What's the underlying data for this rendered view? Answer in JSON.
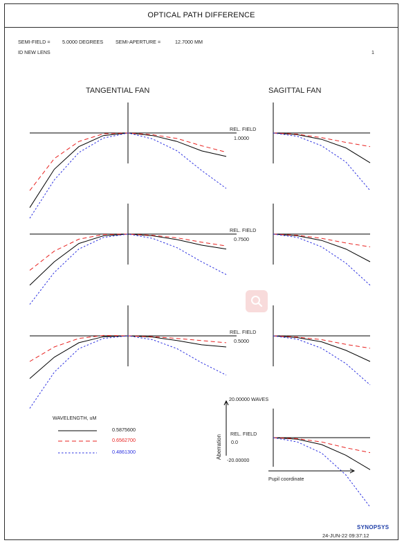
{
  "page": {
    "title": "OPTICAL PATH DIFFERENCE",
    "semi_field_label": "SEMI-FIELD =",
    "semi_field_value": "5.0000 DEGREES",
    "semi_aperture_label": "SEMI-APERTURE =",
    "semi_aperture_value": "12.7000 MM",
    "lens_id": "ID NEW LENS",
    "page_number": "1",
    "brand": "SYNOPSYS",
    "timestamp": "24-JUN-22  09:37:12"
  },
  "chart_data": {
    "type": "line",
    "title": "OPTICAL PATH DIFFERENCE",
    "panel_headers": [
      "TANGENTIAL FAN",
      "SAGITTAL FAN"
    ],
    "field_label": "REL. FIELD",
    "scale": {
      "top_label": "20.00000 WAVES",
      "zero_label": "0.0",
      "bottom_label": "-20.00000",
      "ylim": [
        -20,
        20
      ],
      "xlim": [
        -1,
        1
      ]
    },
    "ylabel": "Aberration",
    "xlabel": "Pupil coordinate",
    "legend": {
      "title": "WAVELENGTH, uM",
      "entries": [
        {
          "label": "0.5875600",
          "color": "#000000",
          "dash": "solid"
        },
        {
          "label": "0.6562700",
          "color": "#e8211f",
          "dash": "long-dash"
        },
        {
          "label": "0.4861300",
          "color": "#2a2fe0",
          "dash": "short-dash"
        }
      ]
    },
    "series_colors": [
      "#000000",
      "#e8211f",
      "#2a2fe0"
    ],
    "fields": [
      {
        "rel_field": "1.0000",
        "tangential": {
          "x": [
            -1,
            -0.75,
            -0.5,
            -0.25,
            0,
            0.25,
            0.5,
            0.75,
            1
          ],
          "series": [
            {
              "wavelength": "0.5875600",
              "values": [
                -17.5,
                -8.5,
                -3.2,
                -0.6,
                0,
                -0.6,
                -2.0,
                -4.2,
                -5.5
              ]
            },
            {
              "wavelength": "0.6562700",
              "values": [
                -13.5,
                -6.0,
                -2.0,
                -0.2,
                0,
                -0.4,
                -1.3,
                -3.0,
                -4.5
              ]
            },
            {
              "wavelength": "0.4861300",
              "values": [
                -20.0,
                -11.0,
                -4.6,
                -1.2,
                0,
                -1.4,
                -4.2,
                -8.8,
                -13.0
              ]
            }
          ]
        },
        "sagittal": {
          "x": [
            0,
            0.25,
            0.5,
            0.75,
            1
          ],
          "series": [
            {
              "wavelength": "0.5875600",
              "values": [
                0,
                -0.4,
                -1.5,
                -3.5,
                -7.0
              ]
            },
            {
              "wavelength": "0.6562700",
              "values": [
                0,
                -0.3,
                -1.1,
                -2.2,
                -3.2
              ]
            },
            {
              "wavelength": "0.4861300",
              "values": [
                0,
                -0.8,
                -3.0,
                -6.8,
                -13.5
              ]
            }
          ]
        }
      },
      {
        "rel_field": "0.7500",
        "tangential": {
          "x": [
            -1,
            -0.75,
            -0.5,
            -0.25,
            0,
            0.25,
            0.5,
            0.75,
            1
          ],
          "series": [
            {
              "wavelength": "0.5875600",
              "values": [
                -12.0,
                -6.5,
                -2.2,
                -0.4,
                0,
                -0.4,
                -1.3,
                -2.6,
                -3.5
              ]
            },
            {
              "wavelength": "0.6562700",
              "values": [
                -8.5,
                -4.0,
                -1.2,
                -0.1,
                0,
                -0.3,
                -0.9,
                -1.9,
                -2.8
              ]
            },
            {
              "wavelength": "0.4861300",
              "values": [
                -16.5,
                -9.0,
                -3.5,
                -0.8,
                0,
                -1.0,
                -3.2,
                -6.5,
                -9.5
              ]
            }
          ]
        },
        "sagittal": {
          "x": [
            0,
            0.25,
            0.5,
            0.75,
            1
          ],
          "series": [
            {
              "wavelength": "0.5875600",
              "values": [
                0,
                -0.4,
                -1.5,
                -3.5,
                -6.5
              ]
            },
            {
              "wavelength": "0.6562700",
              "values": [
                0,
                -0.3,
                -1.0,
                -2.1,
                -3.0
              ]
            },
            {
              "wavelength": "0.4861300",
              "values": [
                0,
                -0.8,
                -3.0,
                -6.8,
                -12.0
              ]
            }
          ]
        }
      },
      {
        "rel_field": "0.5000",
        "tangential": {
          "x": [
            -1,
            -0.75,
            -0.5,
            -0.25,
            0,
            0.25,
            0.5,
            0.75,
            1
          ],
          "series": [
            {
              "wavelength": "0.5875600",
              "values": [
                -10.0,
                -5.0,
                -1.6,
                -0.2,
                0,
                -0.3,
                -1.1,
                -2.1,
                -2.6
              ]
            },
            {
              "wavelength": "0.6562700",
              "values": [
                -6.0,
                -2.6,
                -0.6,
                0.1,
                0,
                -0.2,
                -0.6,
                -1.1,
                -1.6
              ]
            },
            {
              "wavelength": "0.4861300",
              "values": [
                -17.0,
                -8.5,
                -3.0,
                -0.6,
                0,
                -0.9,
                -3.0,
                -6.3,
                -9.2
              ]
            }
          ]
        },
        "sagittal": {
          "x": [
            0,
            0.25,
            0.5,
            0.75,
            1
          ],
          "series": [
            {
              "wavelength": "0.5875600",
              "values": [
                0,
                -0.4,
                -1.4,
                -3.4,
                -6.0
              ]
            },
            {
              "wavelength": "0.6562700",
              "values": [
                0,
                -0.3,
                -0.9,
                -2.0,
                -2.9
              ]
            },
            {
              "wavelength": "0.4861300",
              "values": [
                0,
                -0.8,
                -2.9,
                -6.5,
                -11.5
              ]
            }
          ]
        }
      },
      {
        "rel_field": "0.0",
        "tangential": null,
        "sagittal": {
          "x": [
            0,
            0.25,
            0.5,
            0.75,
            1
          ],
          "series": [
            {
              "wavelength": "0.5875600",
              "values": [
                0,
                -0.3,
                -1.3,
                -3.3,
                -6.0
              ]
            },
            {
              "wavelength": "0.6562700",
              "values": [
                0,
                -0.2,
                -0.8,
                -1.9,
                -2.8
              ]
            },
            {
              "wavelength": "0.4861300",
              "values": [
                0,
                -0.8,
                -2.9,
                -7.0,
                -13.0
              ]
            }
          ]
        }
      }
    ]
  }
}
